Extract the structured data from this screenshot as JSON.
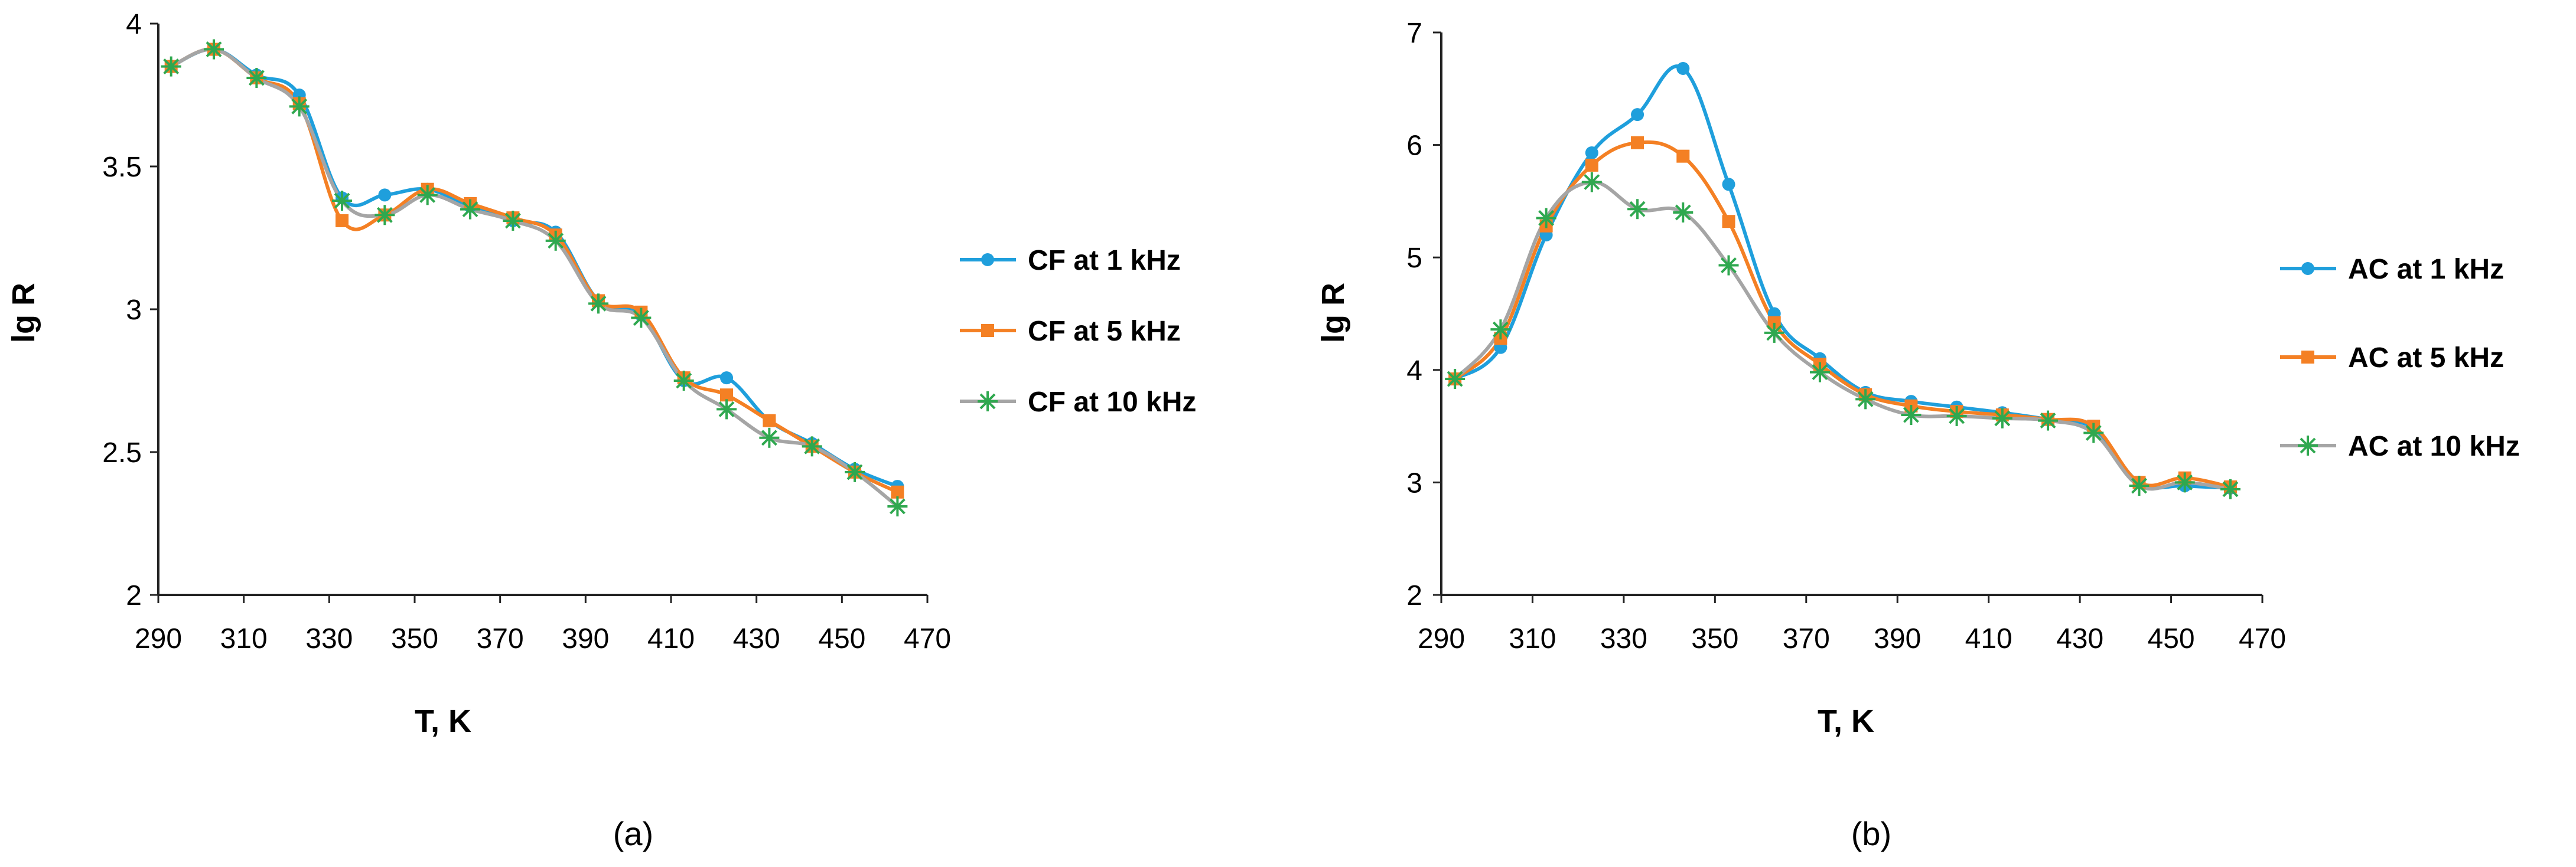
{
  "chart_data": [
    {
      "type": "line",
      "panel_label": "(a)",
      "xlabel": "T, K",
      "ylabel": "lg R",
      "xlim": [
        290,
        470
      ],
      "ylim": [
        2,
        4
      ],
      "xticks": [
        "290",
        "310",
        "330",
        "350",
        "370",
        "390",
        "410",
        "430",
        "450",
        "470"
      ],
      "yticks": [
        "2",
        "2.5",
        "3",
        "3.5",
        "4"
      ],
      "x": [
        293,
        303,
        313,
        323,
        333,
        343,
        353,
        363,
        373,
        383,
        393,
        403,
        413,
        423,
        433,
        443,
        453,
        463
      ],
      "series": [
        {
          "name": "CF at 1 kHz",
          "color": "#1f9fdc",
          "marker": "circle",
          "values": [
            3.85,
            3.91,
            3.82,
            3.75,
            3.39,
            3.4,
            3.42,
            3.36,
            3.31,
            3.27,
            3.03,
            2.98,
            2.75,
            2.76,
            2.61,
            2.53,
            2.44,
            2.38
          ]
        },
        {
          "name": "CF at 5 kHz",
          "color": "#f48024",
          "marker": "square",
          "values": [
            3.85,
            3.91,
            3.81,
            3.72,
            3.31,
            3.33,
            3.42,
            3.37,
            3.32,
            3.26,
            3.03,
            2.99,
            2.76,
            2.7,
            2.61,
            2.52,
            2.43,
            2.36
          ]
        },
        {
          "name": "CF at 10 kHz",
          "color": "#a5a5a5",
          "marker": "star",
          "values": [
            3.85,
            3.91,
            3.81,
            3.71,
            3.38,
            3.33,
            3.4,
            3.35,
            3.31,
            3.24,
            3.02,
            2.97,
            2.75,
            2.65,
            2.55,
            2.52,
            2.43,
            2.31
          ]
        }
      ]
    },
    {
      "type": "line",
      "panel_label": "(b)",
      "xlabel": "T, K",
      "ylabel": "lg R",
      "xlim": [
        290,
        470
      ],
      "ylim": [
        2,
        7
      ],
      "xticks": [
        "290",
        "310",
        "330",
        "350",
        "370",
        "390",
        "410",
        "430",
        "450",
        "470"
      ],
      "yticks": [
        "2",
        "3",
        "4",
        "5",
        "6",
        "7"
      ],
      "x": [
        293,
        303,
        313,
        323,
        333,
        343,
        353,
        363,
        373,
        383,
        393,
        403,
        413,
        423,
        433,
        443,
        453,
        463
      ],
      "series": [
        {
          "name": "AC at 1 kHz",
          "color": "#1f9fdc",
          "marker": "circle",
          "values": [
            3.92,
            4.2,
            5.2,
            5.93,
            6.27,
            6.68,
            5.65,
            4.5,
            4.1,
            3.8,
            3.72,
            3.67,
            3.62,
            3.56,
            3.48,
            3.0,
            2.97,
            2.95
          ]
        },
        {
          "name": "AC at 5 kHz",
          "color": "#f48024",
          "marker": "square",
          "values": [
            3.92,
            4.28,
            5.28,
            5.82,
            6.02,
            5.9,
            5.32,
            4.42,
            4.05,
            3.78,
            3.68,
            3.63,
            3.6,
            3.56,
            3.5,
            3.0,
            3.04,
            2.96
          ]
        },
        {
          "name": "AC at 10 kHz",
          "color": "#a5a5a5",
          "marker": "star",
          "values": [
            3.92,
            4.36,
            5.35,
            5.67,
            5.43,
            5.4,
            4.93,
            4.33,
            3.98,
            3.74,
            3.6,
            3.59,
            3.57,
            3.55,
            3.44,
            2.97,
            3.0,
            2.94
          ]
        }
      ]
    }
  ]
}
